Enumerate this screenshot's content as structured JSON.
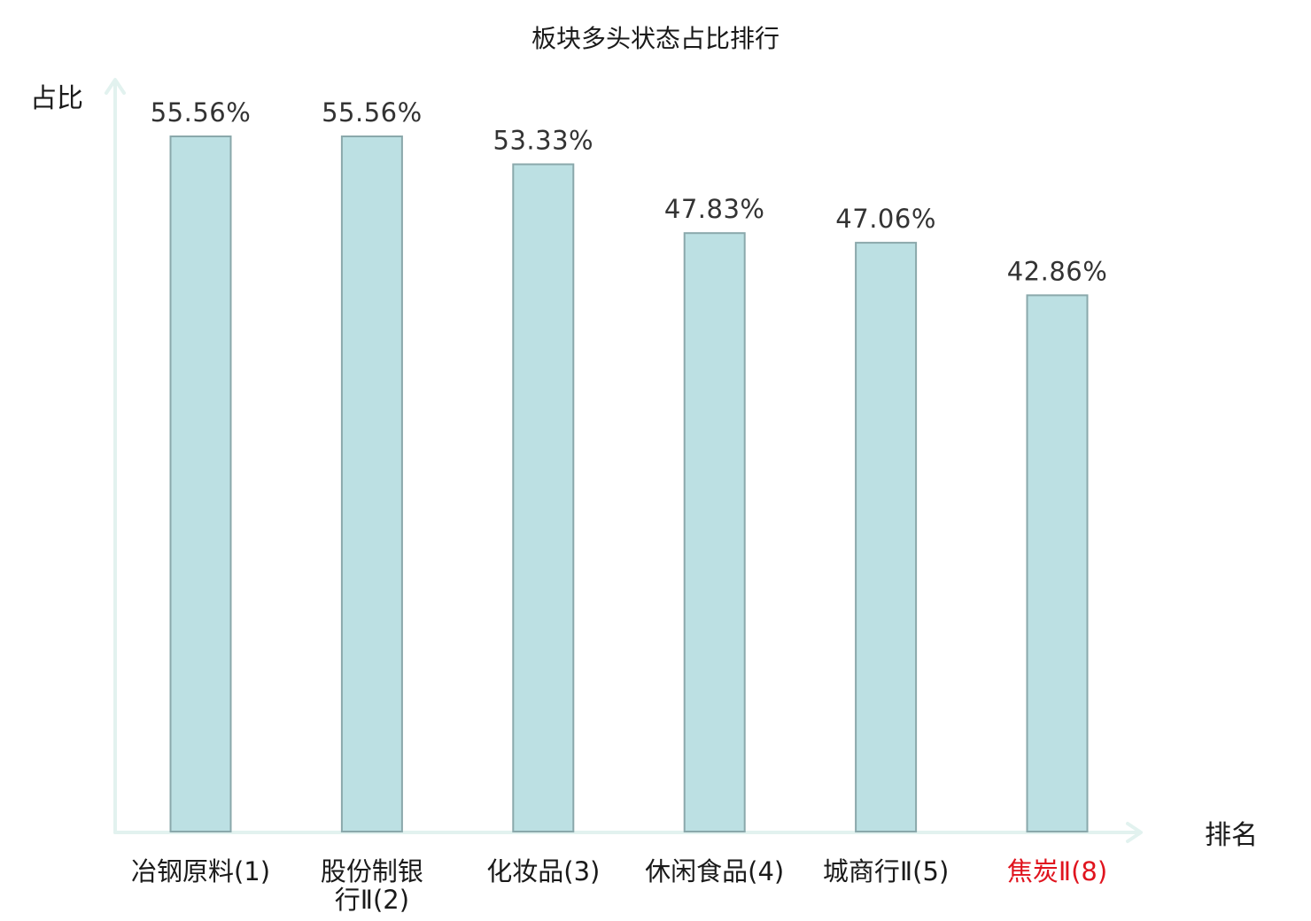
{
  "chart_data": {
    "type": "bar",
    "title": "板块多头状态占比排行",
    "ylabel": "占比",
    "xlabel": "排名",
    "ylim": [
      0,
      60
    ],
    "grid": false,
    "categories": [
      {
        "lines": [
          "冶钢原料(1)"
        ],
        "color": "#1a1a1a"
      },
      {
        "lines": [
          "股份制银",
          "行Ⅱ(2)"
        ],
        "color": "#1a1a1a"
      },
      {
        "lines": [
          "化妆品(3)"
        ],
        "color": "#1a1a1a"
      },
      {
        "lines": [
          "休闲食品(4)"
        ],
        "color": "#1a1a1a"
      },
      {
        "lines": [
          "城商行Ⅱ(5)"
        ],
        "color": "#1a1a1a"
      },
      {
        "lines": [
          "焦炭Ⅱ(8)"
        ],
        "color": "#e0141e"
      }
    ],
    "values": [
      55.56,
      55.56,
      53.33,
      47.83,
      47.06,
      42.86
    ],
    "value_labels": [
      "55.56%",
      "55.56%",
      "53.33%",
      "47.83%",
      "47.06%",
      "42.86%"
    ],
    "colors": {
      "bar_fill": "#bce0e3",
      "bar_stroke": "#8aa8ab",
      "axis": "#e2f2ef",
      "highlight": "#e0141e"
    }
  }
}
